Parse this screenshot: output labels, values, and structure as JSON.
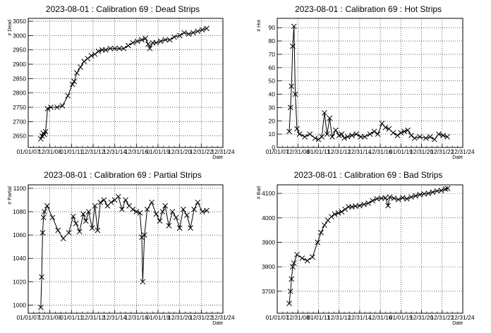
{
  "chart_data": [
    {
      "type": "line",
      "title": "2023-08-01 : Calibration 69 : Dead Strips",
      "xlabel": "Date",
      "ylabel": "# Dead",
      "x_tick_labels": [
        "01/01/07",
        "12/31/08",
        "01/01/11",
        "12/31/12",
        "12/31/14",
        "12/31/16",
        "01/01/19",
        "12/31/20",
        "12/31/22",
        "12/31/24"
      ],
      "y_ticks": [
        2650,
        2700,
        2750,
        2800,
        2850,
        2900,
        2950,
        3000,
        3050
      ],
      "ylim": [
        2610,
        3060
      ],
      "grid": true,
      "points": [
        [
          "2008-03-01",
          2640
        ],
        [
          "2008-04-15",
          2650
        ],
        [
          "2008-05-20",
          2660
        ],
        [
          "2008-07-01",
          2655
        ],
        [
          "2008-08-10",
          2665
        ],
        [
          "2008-10-15",
          2745
        ],
        [
          "2009-02-01",
          2750
        ],
        [
          "2009-09-01",
          2750
        ],
        [
          "2010-03-01",
          2755
        ],
        [
          "2010-09-01",
          2790
        ],
        [
          "2011-02-01",
          2830
        ],
        [
          "2011-04-01",
          2840
        ],
        [
          "2011-07-01",
          2870
        ],
        [
          "2011-11-01",
          2890
        ],
        [
          "2012-03-01",
          2910
        ],
        [
          "2012-07-01",
          2920
        ],
        [
          "2012-11-01",
          2930
        ],
        [
          "2013-03-01",
          2935
        ],
        [
          "2013-07-01",
          2945
        ],
        [
          "2013-11-01",
          2950
        ],
        [
          "2014-03-01",
          2950
        ],
        [
          "2014-08-01",
          2955
        ],
        [
          "2015-01-01",
          2955
        ],
        [
          "2015-06-01",
          2955
        ],
        [
          "2015-11-01",
          2955
        ],
        [
          "2016-04-01",
          2965
        ],
        [
          "2016-09-01",
          2975
        ],
        [
          "2017-02-01",
          2980
        ],
        [
          "2017-07-01",
          2985
        ],
        [
          "2017-11-01",
          2990
        ],
        [
          "2018-02-01",
          2970
        ],
        [
          "2018-04-01",
          2955
        ],
        [
          "2018-07-01",
          2975
        ],
        [
          "2018-11-01",
          2975
        ],
        [
          "2019-04-01",
          2980
        ],
        [
          "2019-09-01",
          2985
        ],
        [
          "2020-02-01",
          2985
        ],
        [
          "2020-07-01",
          2995
        ],
        [
          "2021-01-01",
          3000
        ],
        [
          "2021-06-01",
          3010
        ],
        [
          "2021-11-01",
          3005
        ],
        [
          "2022-04-01",
          3010
        ],
        [
          "2022-09-01",
          3015
        ],
        [
          "2023-02-01",
          3020
        ],
        [
          "2023-07-01",
          3025
        ]
      ]
    },
    {
      "type": "line",
      "title": "2023-08-01 : Calibration 69 : Hot Strips",
      "xlabel": "Date",
      "ylabel": "# Hot",
      "x_tick_labels": [
        "01/01/07",
        "12/31/08",
        "01/01/11",
        "12/31/12",
        "12/31/14",
        "12/31/16",
        "01/01/19",
        "12/31/20",
        "12/31/22",
        "12/31/24"
      ],
      "y_ticks": [
        0,
        10,
        20,
        30,
        40,
        50,
        60,
        70,
        80,
        90
      ],
      "ylim": [
        0,
        97
      ],
      "grid": true,
      "points": [
        [
          "2008-03-01",
          12
        ],
        [
          "2008-04-15",
          30
        ],
        [
          "2008-05-20",
          46
        ],
        [
          "2008-07-01",
          76
        ],
        [
          "2008-08-15",
          91
        ],
        [
          "2008-10-01",
          40
        ],
        [
          "2008-12-01",
          14
        ],
        [
          "2009-03-01",
          10
        ],
        [
          "2009-09-01",
          8
        ],
        [
          "2010-03-01",
          10
        ],
        [
          "2010-09-01",
          7
        ],
        [
          "2011-01-01",
          6
        ],
        [
          "2011-05-01",
          8
        ],
        [
          "2011-08-01",
          26
        ],
        [
          "2011-11-01",
          10
        ],
        [
          "2012-02-01",
          22
        ],
        [
          "2012-05-01",
          8
        ],
        [
          "2012-09-01",
          13
        ],
        [
          "2013-01-01",
          9
        ],
        [
          "2013-04-01",
          10
        ],
        [
          "2013-07-01",
          7
        ],
        [
          "2013-11-01",
          8
        ],
        [
          "2014-04-01",
          9
        ],
        [
          "2014-09-01",
          10
        ],
        [
          "2015-02-01",
          8
        ],
        [
          "2015-07-01",
          8
        ],
        [
          "2016-01-01",
          10
        ],
        [
          "2016-06-01",
          12
        ],
        [
          "2016-10-01",
          10
        ],
        [
          "2017-03-01",
          18
        ],
        [
          "2017-07-01",
          15
        ],
        [
          "2017-11-01",
          14
        ],
        [
          "2018-04-01",
          11
        ],
        [
          "2018-09-01",
          9
        ],
        [
          "2019-01-01",
          11
        ],
        [
          "2019-05-01",
          12
        ],
        [
          "2019-09-01",
          13
        ],
        [
          "2020-01-01",
          9
        ],
        [
          "2020-05-01",
          7
        ],
        [
          "2020-11-01",
          8
        ],
        [
          "2021-06-01",
          7
        ],
        [
          "2021-11-01",
          8
        ],
        [
          "2022-04-01",
          6
        ],
        [
          "2022-09-01",
          10
        ],
        [
          "2023-02-01",
          9
        ],
        [
          "2023-07-01",
          8
        ]
      ]
    },
    {
      "type": "line",
      "title": "2023-08-01 : Calibration 69 : Partial Strips",
      "xlabel": "Date",
      "ylabel": "# Partial",
      "x_tick_labels": [
        "01/01/07",
        "12/31/08",
        "01/01/11",
        "12/31/12",
        "12/31/14",
        "12/31/16",
        "01/01/19",
        "12/31/20",
        "12/31/22",
        "12/31/24"
      ],
      "y_ticks": [
        1000,
        1020,
        1040,
        1060,
        1080,
        1100
      ],
      "ylim": [
        993,
        1103
      ],
      "grid": true,
      "points": [
        [
          "2008-03-01",
          998
        ],
        [
          "2008-04-01",
          1024
        ],
        [
          "2008-05-01",
          1062
        ],
        [
          "2008-06-01",
          1075
        ],
        [
          "2008-07-01",
          1080
        ],
        [
          "2008-10-01",
          1085
        ],
        [
          "2009-04-01",
          1075
        ],
        [
          "2009-10-01",
          1064
        ],
        [
          "2010-04-01",
          1057
        ],
        [
          "2010-10-01",
          1062
        ],
        [
          "2011-03-01",
          1076
        ],
        [
          "2011-06-01",
          1070
        ],
        [
          "2011-10-01",
          1063
        ],
        [
          "2012-02-01",
          1078
        ],
        [
          "2012-05-01",
          1072
        ],
        [
          "2012-08-01",
          1080
        ],
        [
          "2012-12-01",
          1066
        ],
        [
          "2013-03-01",
          1085
        ],
        [
          "2013-06-01",
          1064
        ],
        [
          "2013-09-01",
          1088
        ],
        [
          "2014-01-01",
          1090
        ],
        [
          "2014-05-01",
          1085
        ],
        [
          "2014-09-01",
          1088
        ],
        [
          "2015-01-01",
          1090
        ],
        [
          "2015-05-01",
          1093
        ],
        [
          "2015-09-01",
          1082
        ],
        [
          "2016-01-01",
          1090
        ],
        [
          "2016-05-01",
          1085
        ],
        [
          "2016-09-01",
          1082
        ],
        [
          "2017-01-01",
          1080
        ],
        [
          "2017-05-01",
          1079
        ],
        [
          "2017-07-01",
          1058
        ],
        [
          "2017-08-01",
          1020
        ],
        [
          "2017-10-01",
          1060
        ],
        [
          "2018-01-01",
          1082
        ],
        [
          "2018-06-01",
          1088
        ],
        [
          "2018-11-01",
          1078
        ],
        [
          "2019-03-01",
          1072
        ],
        [
          "2019-06-01",
          1080
        ],
        [
          "2019-09-01",
          1085
        ],
        [
          "2020-01-01",
          1068
        ],
        [
          "2020-05-01",
          1080
        ],
        [
          "2020-09-01",
          1075
        ],
        [
          "2021-01-01",
          1066
        ],
        [
          "2021-05-01",
          1082
        ],
        [
          "2021-09-01",
          1077
        ],
        [
          "2022-01-01",
          1066
        ],
        [
          "2022-05-01",
          1082
        ],
        [
          "2022-09-01",
          1088
        ],
        [
          "2023-02-01",
          1080
        ],
        [
          "2023-07-01",
          1081
        ]
      ]
    },
    {
      "type": "line",
      "title": "2023-08-01 : Calibration 69 : Bad Strips",
      "xlabel": "Date",
      "ylabel": "# Bad",
      "x_tick_labels": [
        "01/01/07",
        "12/31/08",
        "01/01/11",
        "12/31/12",
        "12/31/14",
        "12/31/16",
        "01/01/19",
        "12/31/20",
        "12/31/22",
        "12/31/24"
      ],
      "y_ticks": [
        3700,
        3800,
        3900,
        4000,
        4100
      ],
      "ylim": [
        3610,
        4135
      ],
      "grid": true,
      "points": [
        [
          "2008-03-01",
          3650
        ],
        [
          "2008-04-15",
          3700
        ],
        [
          "2008-05-20",
          3750
        ],
        [
          "2008-07-01",
          3800
        ],
        [
          "2008-08-15",
          3815
        ],
        [
          "2008-12-01",
          3850
        ],
        [
          "2009-06-01",
          3835
        ],
        [
          "2009-12-01",
          3825
        ],
        [
          "2010-06-01",
          3840
        ],
        [
          "2010-12-01",
          3900
        ],
        [
          "2011-04-01",
          3940
        ],
        [
          "2011-08-01",
          3970
        ],
        [
          "2011-12-01",
          3990
        ],
        [
          "2012-04-01",
          4005
        ],
        [
          "2012-08-01",
          4015
        ],
        [
          "2012-12-01",
          4020
        ],
        [
          "2013-04-01",
          4025
        ],
        [
          "2013-08-01",
          4035
        ],
        [
          "2013-12-01",
          4045
        ],
        [
          "2014-04-01",
          4045
        ],
        [
          "2014-08-01",
          4048
        ],
        [
          "2015-01-01",
          4050
        ],
        [
          "2015-06-01",
          4055
        ],
        [
          "2015-11-01",
          4060
        ],
        [
          "2016-04-01",
          4070
        ],
        [
          "2016-09-01",
          4078
        ],
        [
          "2017-02-01",
          4080
        ],
        [
          "2017-07-01",
          4082
        ],
        [
          "2017-10-01",
          4050
        ],
        [
          "2017-12-01",
          4085
        ],
        [
          "2018-05-01",
          4080
        ],
        [
          "2018-10-01",
          4075
        ],
        [
          "2019-03-01",
          4082
        ],
        [
          "2019-08-01",
          4078
        ],
        [
          "2020-01-01",
          4085
        ],
        [
          "2020-06-01",
          4090
        ],
        [
          "2020-11-01",
          4095
        ],
        [
          "2021-04-01",
          4098
        ],
        [
          "2021-09-01",
          4100
        ],
        [
          "2022-02-01",
          4105
        ],
        [
          "2022-07-01",
          4110
        ],
        [
          "2022-12-01",
          4112
        ],
        [
          "2023-05-01",
          4118
        ],
        [
          "2023-07-15",
          4120
        ]
      ]
    }
  ]
}
